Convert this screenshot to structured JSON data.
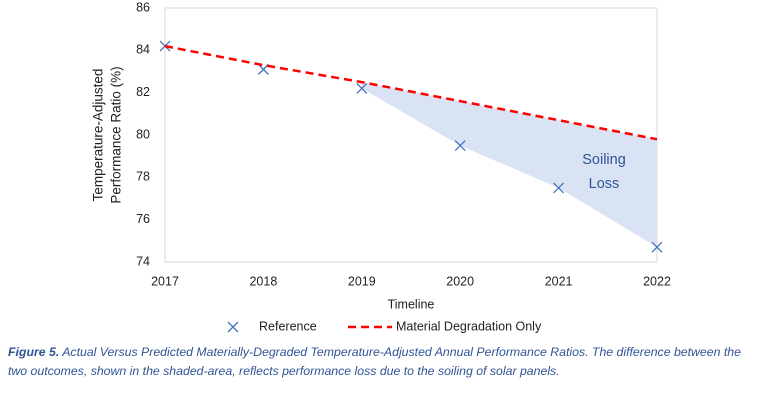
{
  "chart_data": {
    "type": "line",
    "x": [
      2017,
      2018,
      2019,
      2020,
      2021,
      2022
    ],
    "series": [
      {
        "name": "Reference",
        "color": "#4472c4",
        "marker": "x",
        "values": [
          84.2,
          83.1,
          82.2,
          79.5,
          77.5,
          74.7
        ]
      },
      {
        "name": "Material Degradation Only",
        "color": "#ff0000",
        "dashed": true,
        "values": [
          84.2,
          83.3,
          82.5,
          81.6,
          80.7,
          79.8
        ]
      }
    ],
    "shaded_from": 2019,
    "shade_color": "#dae3f3",
    "annotation": [
      "Soiling",
      "Loss"
    ],
    "xlabel": "Timeline",
    "ylabel": [
      "Temperature-Adjusted",
      "Performance Ratio (%)"
    ],
    "xlim": [
      2017,
      2022
    ],
    "xticks": [
      2017,
      2018,
      2019,
      2020,
      2021,
      2022
    ],
    "ylim": [
      74,
      86
    ],
    "yticks": [
      74,
      76,
      78,
      80,
      82,
      84,
      86
    ],
    "grid": false,
    "legend": "bottom"
  },
  "caption": {
    "label": "Figure 5.",
    "text": "Actual Versus Predicted Materially-Degraded Temperature-Adjusted Annual Performance Ratios. The difference between the two outcomes, shown in the shaded-area, reflects performance loss due to the soiling of solar panels."
  }
}
